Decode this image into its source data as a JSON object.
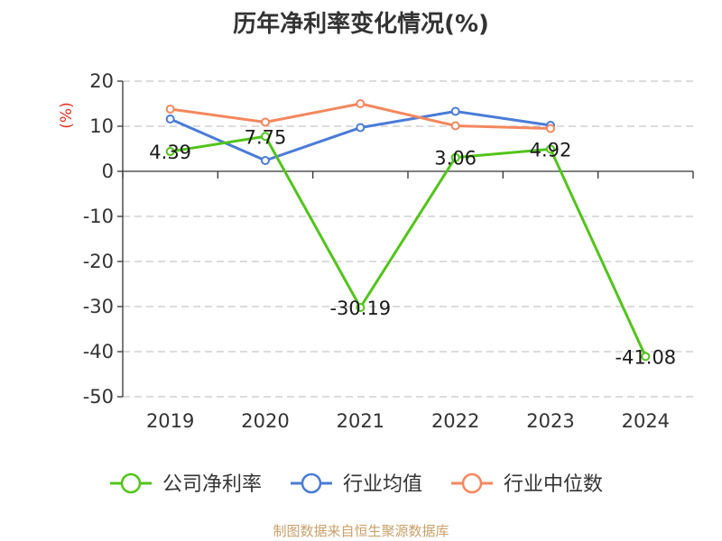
{
  "footer": "制图数据来自恒生聚源数据库",
  "chart_data": {
    "type": "line",
    "title": "历年净利率变化情况(%)",
    "ylabel": "(%)",
    "xlabel": "",
    "categories": [
      "2019",
      "2020",
      "2021",
      "2022",
      "2023",
      "2024"
    ],
    "ylim": [
      -50,
      20
    ],
    "yticks": [
      20,
      10,
      0,
      -10,
      -20,
      -30,
      -40,
      -50
    ],
    "grid": true,
    "legend_position": "bottom",
    "series": [
      {
        "name": "公司净利率",
        "color": "#52c41a",
        "values": [
          4.39,
          7.75,
          -30.19,
          3.06,
          4.92,
          -41.08
        ],
        "labels": [
          "4.39",
          "7.75",
          "-30.19",
          "3.06",
          "4.92",
          "-41.08"
        ]
      },
      {
        "name": "行业均值",
        "color": "#4a7bd8",
        "values": [
          11.6,
          2.4,
          9.7,
          13.3,
          10.2,
          null
        ]
      },
      {
        "name": "行业中位数",
        "color": "#f4875e",
        "values": [
          13.8,
          10.9,
          15.0,
          10.1,
          9.5,
          null
        ]
      }
    ]
  }
}
